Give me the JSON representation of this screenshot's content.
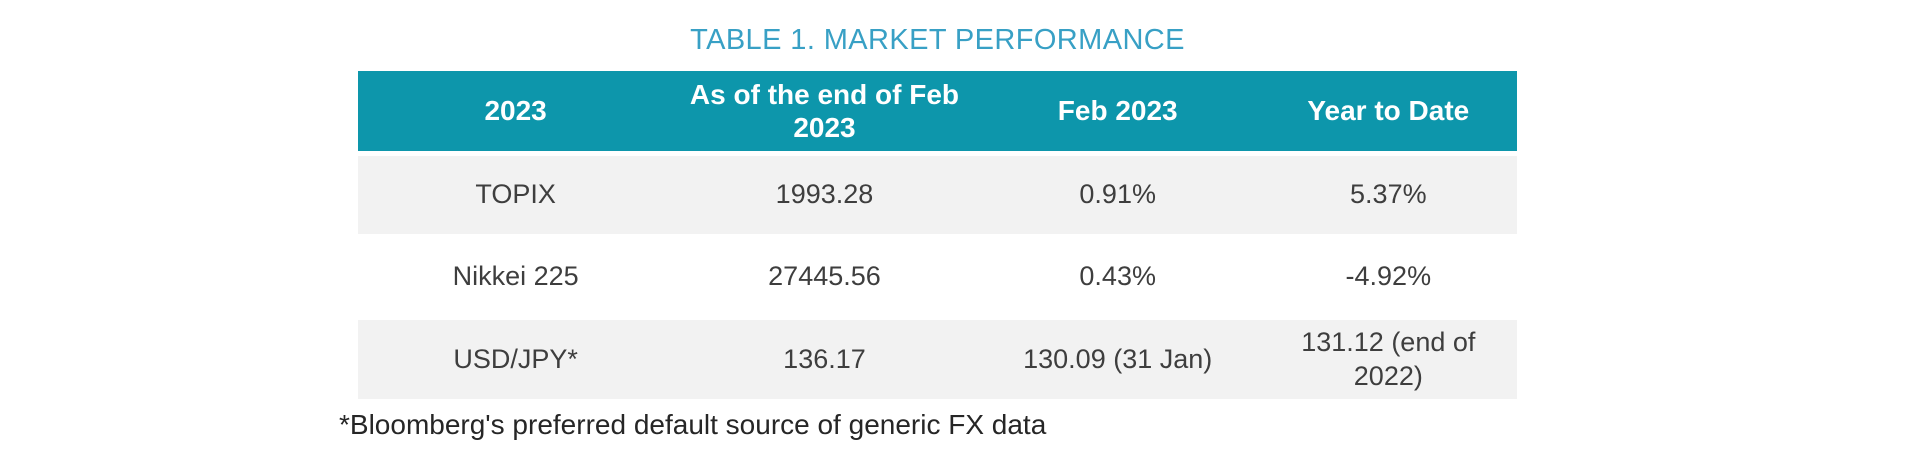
{
  "title": "TABLE 1. MARKET PERFORMANCE",
  "table": {
    "columns": [
      "2023",
      "As of the end of Feb 2023",
      "Feb 2023",
      "Year to Date"
    ],
    "rows": [
      {
        "label": "TOPIX",
        "values": [
          "1993.28",
          "0.91%",
          "5.37%"
        ]
      },
      {
        "label": "Nikkei 225",
        "values": [
          "27445.56",
          "0.43%",
          "-4.92%"
        ]
      },
      {
        "label": "USD/JPY*",
        "values": [
          "136.17",
          "130.09 (31 Jan)",
          "131.12 (end of 2022)"
        ]
      }
    ]
  },
  "footnote": "*Bloomberg's preferred default source of generic FX data",
  "colors": {
    "header_bg": "#0d96ab",
    "header_text": "#ffffff",
    "title": "#38a0c5",
    "row_alt_bg": "#f2f2f2",
    "body_text": "#3e3e3e",
    "footnote_text": "#262626"
  }
}
